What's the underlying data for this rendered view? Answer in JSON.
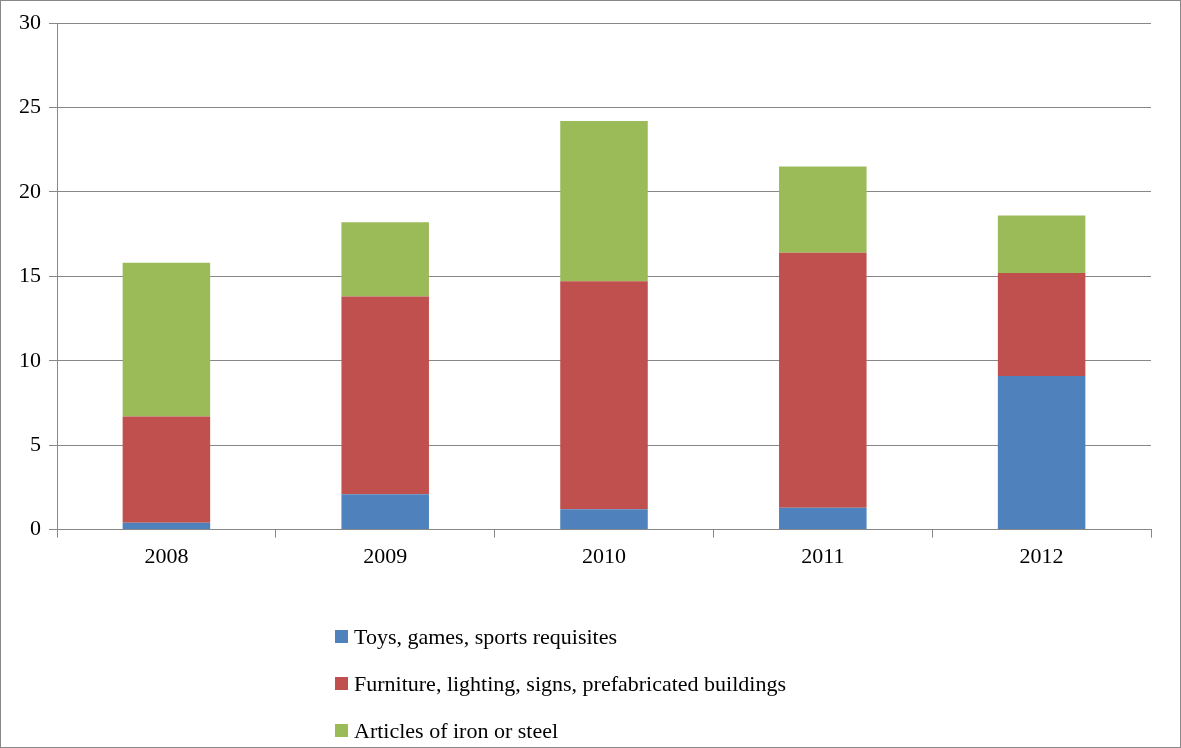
{
  "chart_data": {
    "type": "bar",
    "stacked": true,
    "categories": [
      "2008",
      "2009",
      "2010",
      "2011",
      "2012"
    ],
    "series": [
      {
        "name": "Toys, games, sports requisites",
        "color": "#4f81bd",
        "values": [
          0.4,
          2.1,
          1.2,
          1.3,
          9.1
        ]
      },
      {
        "name": "Furniture, lighting, signs, prefabricated buildings",
        "color": "#c0504d",
        "values": [
          6.3,
          11.7,
          13.5,
          15.1,
          6.1
        ]
      },
      {
        "name": "Articles of iron or steel",
        "color": "#9bbb59",
        "values": [
          9.1,
          4.4,
          9.5,
          5.1,
          3.4
        ]
      }
    ],
    "ylim": [
      0,
      30
    ],
    "yticks": [
      0,
      5,
      10,
      15,
      20,
      25,
      30
    ],
    "grid": "y",
    "legend": "bottom"
  }
}
